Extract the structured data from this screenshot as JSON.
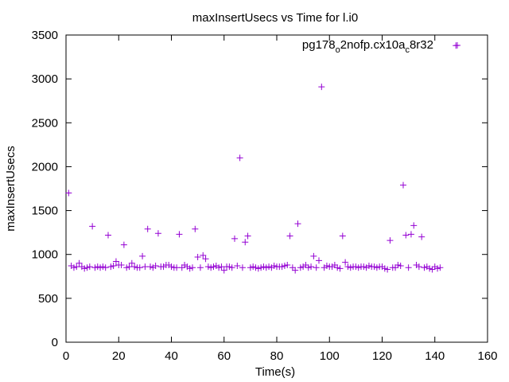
{
  "chart_data": {
    "type": "scatter",
    "title": "maxInsertUsecs vs Time for l.i0",
    "xlabel": "Time(s)",
    "ylabel": "maxInsertUsecs",
    "xlim": [
      0,
      160
    ],
    "ylim": [
      0,
      3500
    ],
    "xticks": [
      0,
      20,
      40,
      60,
      80,
      100,
      120,
      140,
      160
    ],
    "yticks": [
      0,
      500,
      1000,
      1500,
      2000,
      2500,
      3000,
      3500
    ],
    "grid": false,
    "legend_position": "top-right",
    "marker": "+",
    "color": "#9400d3",
    "series": [
      {
        "name_parts": [
          "pg178",
          "o",
          "2nofp.cx10a",
          "c",
          "8r32"
        ],
        "name": "pg178_o2nofp.cx10a_c8r32",
        "x": [
          1,
          2,
          3,
          4,
          5,
          6,
          7,
          8,
          9,
          10,
          11,
          12,
          13,
          14,
          15,
          16,
          17,
          18,
          19,
          20,
          21,
          22,
          23,
          24,
          25,
          26,
          27,
          28,
          29,
          30,
          31,
          32,
          33,
          34,
          35,
          36,
          37,
          38,
          39,
          40,
          41,
          42,
          43,
          44,
          45,
          46,
          47,
          48,
          49,
          50,
          51,
          52,
          53,
          54,
          55,
          56,
          57,
          58,
          59,
          60,
          61,
          62,
          63,
          64,
          65,
          66,
          67,
          68,
          69,
          70,
          71,
          72,
          73,
          74,
          75,
          76,
          77,
          78,
          79,
          80,
          81,
          82,
          83,
          84,
          85,
          86,
          87,
          88,
          89,
          90,
          91,
          92,
          93,
          94,
          95,
          96,
          97,
          98,
          99,
          100,
          101,
          102,
          103,
          104,
          105,
          106,
          107,
          108,
          109,
          110,
          111,
          112,
          113,
          114,
          115,
          116,
          117,
          118,
          119,
          120,
          121,
          122,
          123,
          124,
          125,
          126,
          127,
          128,
          129,
          130,
          131,
          132,
          133,
          134,
          135,
          136,
          137,
          138,
          139,
          140,
          141,
          142,
          148
        ],
        "y": [
          1700,
          870,
          850,
          860,
          900,
          860,
          840,
          850,
          860,
          1320,
          850,
          860,
          850,
          860,
          850,
          1220,
          860,
          870,
          920,
          880,
          880,
          1110,
          850,
          860,
          900,
          860,
          850,
          850,
          980,
          860,
          1290,
          860,
          850,
          870,
          1240,
          860,
          860,
          880,
          880,
          860,
          850,
          850,
          1230,
          850,
          880,
          860,
          840,
          850,
          1290,
          970,
          850,
          990,
          950,
          860,
          850,
          860,
          870,
          850,
          860,
          820,
          860,
          860,
          850,
          1180,
          870,
          2100,
          850,
          1140,
          1210,
          850,
          860,
          850,
          840,
          850,
          860,
          850,
          860,
          850,
          870,
          860,
          860,
          860,
          870,
          880,
          1210,
          850,
          820,
          1350,
          850,
          860,
          880,
          850,
          860,
          980,
          850,
          930,
          2910,
          850,
          870,
          860,
          860,
          880,
          850,
          840,
          1210,
          910,
          860,
          850,
          860,
          860,
          850,
          860,
          860,
          850,
          870,
          860,
          860,
          850,
          860,
          860,
          840,
          830,
          1160,
          850,
          850,
          880,
          870,
          1790,
          1220,
          850,
          1230,
          1330,
          880,
          860,
          1200,
          850,
          860,
          840,
          830,
          860,
          840,
          850,
          3380
        ]
      }
    ]
  }
}
